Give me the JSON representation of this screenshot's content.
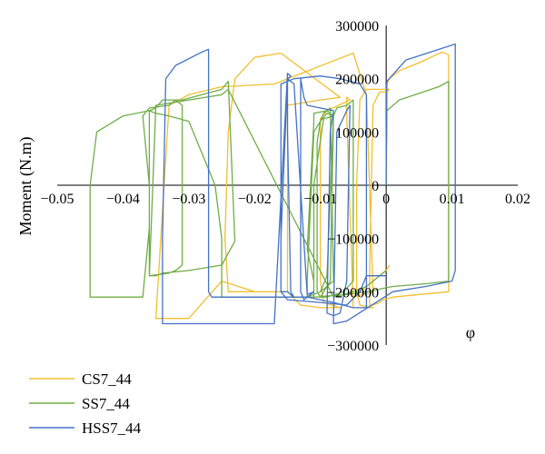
{
  "chart_data": {
    "type": "line",
    "title": "",
    "xlabel": "φ",
    "ylabel": "Moment (N.m)",
    "xlim": [
      -0.05,
      0.02
    ],
    "ylim": [
      -300000,
      300000
    ],
    "xticks": [
      -0.05,
      -0.04,
      -0.03,
      -0.02,
      -0.01,
      0,
      0.01,
      0.02
    ],
    "xtick_labels": [
      "−0.05",
      "−0.04",
      "−0.03",
      "−0.02",
      "−0.01",
      "0",
      "0.01",
      "0.02"
    ],
    "yticks": [
      -300000,
      -200000,
      -100000,
      0,
      100000,
      200000,
      300000
    ],
    "ytick_labels": [
      "−300000",
      "−200000",
      "−100000",
      "0",
      "100000",
      "200000",
      "300000"
    ],
    "grid": false,
    "legend_position": "bottom-left",
    "series": [
      {
        "name": "CS7_44",
        "color": "#F2BF2E",
        "x": [
          0,
          0.0001,
          0.0005,
          0.002,
          0.005,
          0.0085,
          0.0095,
          0.0095,
          0.005,
          0.001,
          -0.0005,
          -0.001,
          -0.002,
          -0.0025,
          -0.0025,
          -0.002,
          -0.001,
          0,
          0.0005,
          -0.003,
          -0.0035,
          -0.004,
          -0.0045,
          -0.0045,
          -0.004,
          -0.002,
          -0.005,
          -0.006,
          -0.006,
          -0.0055,
          -0.009,
          -0.01,
          -0.01,
          -0.0095,
          -0.007,
          -0.01,
          -0.013,
          -0.015,
          -0.015,
          -0.015,
          -0.01,
          -0.007,
          -0.016,
          -0.02,
          -0.023,
          -0.024,
          -0.0245,
          -0.024,
          -0.02,
          -0.016,
          -0.02,
          -0.025,
          -0.03,
          -0.035,
          -0.035,
          -0.033,
          -0.03,
          -0.025,
          -0.017,
          -0.005,
          -0.003,
          -0.002,
          -0.005,
          0,
          0.0005
        ],
        "y": [
          0,
          190000,
          200000,
          215000,
          230000,
          250000,
          245000,
          -200000,
          -205000,
          -210000,
          -215000,
          -220000,
          -225000,
          -225000,
          -150000,
          150000,
          175000,
          175000,
          180000,
          180000,
          170000,
          160000,
          0,
          -200000,
          -225000,
          -230000,
          -230000,
          130000,
          165000,
          160000,
          140000,
          125000,
          -180000,
          -220000,
          -230000,
          -230000,
          -225000,
          -200000,
          0,
          150000,
          160000,
          165000,
          248000,
          240000,
          200000,
          100000,
          -100000,
          -200000,
          -200000,
          -200000,
          -200000,
          -180000,
          -250000,
          -250000,
          -250000,
          150000,
          170000,
          185000,
          190000,
          248000,
          170000,
          -200000,
          -210000,
          -160000,
          -150000
        ]
      },
      {
        "name": "SS7_44",
        "color": "#70AD47",
        "x": [
          0,
          0.0001,
          0.002,
          0.008,
          0.0095,
          0.0095,
          0.006,
          0.001,
          -0.003,
          -0.006,
          -0.011,
          -0.011,
          -0.012,
          -0.011,
          -0.011,
          -0.009,
          -0.0085,
          -0.008,
          -0.01,
          -0.012,
          -0.012,
          -0.011,
          -0.01,
          -0.009,
          -0.008,
          -0.0085,
          -0.0095,
          -0.01,
          -0.0105,
          -0.0105,
          -0.01,
          -0.0095,
          -0.009,
          -0.008,
          -0.009,
          -0.01,
          -0.011,
          -0.011,
          -0.0095,
          -0.008,
          -0.0075,
          -0.006,
          -0.005,
          -0.005,
          -0.0065,
          -0.009,
          -0.024,
          -0.025,
          -0.025,
          -0.025,
          -0.026,
          -0.03,
          -0.033,
          -0.035,
          -0.036,
          -0.036,
          -0.037,
          -0.044,
          -0.045,
          -0.045,
          -0.044,
          -0.04,
          -0.036,
          -0.035,
          -0.034,
          -0.032,
          -0.031,
          -0.031,
          -0.032,
          -0.033,
          -0.036,
          -0.036,
          -0.037,
          -0.036,
          -0.033,
          -0.032,
          -0.031,
          -0.028,
          -0.025,
          -0.024,
          -0.023,
          -0.025,
          -0.03,
          -0.034,
          -0.035,
          -0.036,
          -0.035,
          -0.03,
          -0.025,
          -0.024,
          -0.008,
          -0.005,
          -0.003,
          -0.002,
          -0.001,
          0
        ],
        "y": [
          0,
          140000,
          160000,
          185000,
          195000,
          -180000,
          -185000,
          -190000,
          -200000,
          -205000,
          -210000,
          -180000,
          -120000,
          120000,
          135000,
          140000,
          145000,
          -180000,
          -200000,
          -210000,
          -180000,
          100000,
          120000,
          135000,
          130000,
          -180000,
          -200000,
          -210000,
          -200000,
          80000,
          120000,
          135000,
          140000,
          130000,
          -170000,
          -200000,
          -205000,
          0,
          125000,
          130000,
          145000,
          150000,
          160000,
          -180000,
          -200000,
          -210000,
          -210000,
          -210000,
          -200000,
          -100000,
          0,
          120000,
          130000,
          135000,
          140000,
          -80000,
          -210000,
          -210000,
          -210000,
          0,
          100000,
          130000,
          140000,
          145000,
          160000,
          160000,
          150000,
          -150000,
          -160000,
          -165000,
          -170000,
          0,
          130000,
          145000,
          150000,
          160000,
          160000,
          170000,
          180000,
          195000,
          -105000,
          -150000,
          -160000,
          -165000,
          -170000,
          -170000,
          150000,
          160000,
          170000,
          180000,
          -210000,
          -200000,
          -190000,
          -180000,
          -170000,
          -160000
        ]
      },
      {
        "name": "HSS7_44",
        "color": "#4472C4",
        "x": [
          0,
          0.0001,
          0.003,
          0.008,
          0.0105,
          0.0105,
          0.01,
          0.006,
          0.001,
          -0.006,
          -0.008,
          -0.008,
          -0.0075,
          -0.006,
          -0.0055,
          -0.006,
          -0.007,
          -0.008,
          -0.009,
          -0.0085,
          -0.008,
          -0.012,
          -0.0125,
          -0.013,
          -0.013,
          -0.0125,
          -0.012,
          -0.011,
          -0.012,
          -0.014,
          -0.015,
          -0.015,
          -0.0145,
          -0.014,
          -0.015,
          -0.016,
          -0.016,
          -0.015,
          -0.0145,
          -0.015,
          -0.017,
          -0.033,
          -0.034,
          -0.034,
          -0.0335,
          -0.032,
          -0.028,
          -0.027,
          -0.027,
          -0.0265,
          -0.025,
          -0.02,
          -0.012,
          -0.008,
          -0.005,
          -0.003,
          -0.003,
          -0.004,
          -0.007,
          -0.01,
          -0.014,
          -0.016,
          -0.016,
          -0.015,
          -0.01,
          -0.006,
          -0.004,
          -0.003,
          0
        ],
        "y": [
          0,
          195000,
          235000,
          255000,
          265000,
          -160000,
          -180000,
          -190000,
          -200000,
          -255000,
          -260000,
          -250000,
          100000,
          140000,
          150000,
          -180000,
          -240000,
          -245000,
          -240000,
          100000,
          140000,
          150000,
          165000,
          200000,
          -200000,
          -215000,
          -210000,
          -200000,
          -205000,
          190000,
          200000,
          100000,
          -200000,
          -210000,
          -200000,
          -200000,
          -100000,
          200000,
          205000,
          210000,
          -260000,
          -260000,
          -260000,
          -100000,
          200000,
          225000,
          250000,
          255000,
          -200000,
          -210000,
          -210000,
          -210000,
          -210000,
          -220000,
          -230000,
          -230000,
          170000,
          190000,
          200000,
          205000,
          200000,
          190000,
          -200000,
          -215000,
          -220000,
          -225000,
          -200000,
          -170000,
          -170000
        ]
      }
    ]
  }
}
